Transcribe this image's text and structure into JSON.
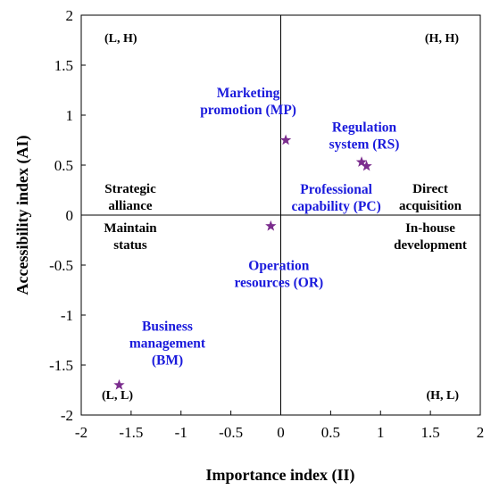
{
  "chart_data": {
    "type": "scatter",
    "xlabel": "Importance index (II)",
    "ylabel": "Accessibility index (AI)",
    "xlim": [
      -2,
      2
    ],
    "ylim": [
      -2,
      2
    ],
    "x_ticks": [
      "-2",
      "-1.5",
      "-1",
      "-0.5",
      "0",
      "0.5",
      "1",
      "1.5",
      "2"
    ],
    "y_ticks": [
      "2",
      "1.5",
      "1",
      "0.5",
      "0",
      "-0.5",
      "-1",
      "-1.5",
      "-2"
    ],
    "grid": false,
    "reference_lines": {
      "x": 0,
      "y": 0
    },
    "marker": "star",
    "marker_color": "#7b2d8e",
    "label_color": "#1a1adc",
    "points": [
      {
        "x": 0.05,
        "y": 0.75,
        "label": [
          "Marketing",
          "promotion (MP)"
        ]
      },
      {
        "x": 0.81,
        "y": 0.53,
        "label": [
          "Regulation",
          "system (RS)"
        ]
      },
      {
        "x": 0.86,
        "y": 0.49,
        "label": [
          "Professional",
          "capability (PC)"
        ]
      },
      {
        "x": -0.1,
        "y": -0.11,
        "label": [
          "Operation",
          "resources (OR)"
        ]
      },
      {
        "x": -1.62,
        "y": -1.7,
        "label": [
          "Business",
          "management",
          "(BM)"
        ]
      }
    ],
    "corner_labels": {
      "top_left": "(L, H)",
      "top_right": "(H, H)",
      "bottom_left": "(L, L)",
      "bottom_right": "(H, L)"
    },
    "quadrant_labels": {
      "upper_left": [
        "Strategic",
        "alliance"
      ],
      "lower_left": [
        "Maintain",
        "status"
      ],
      "upper_right": [
        "Direct",
        "acquisition"
      ],
      "lower_right": [
        "In-house",
        "development"
      ]
    }
  }
}
